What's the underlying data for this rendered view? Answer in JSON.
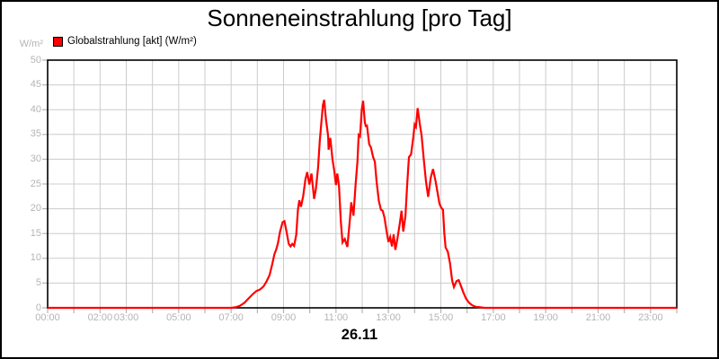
{
  "chart_data": {
    "type": "line",
    "title": "Sonneneinstrahlung [pro Tag]",
    "y_unit": "W/m²",
    "xlabel": "26.11",
    "ylim": [
      0,
      50
    ],
    "y_tick_step": 5,
    "xlim_minutes": [
      0,
      1440
    ],
    "grid": true,
    "legend_position": "top-left",
    "x_tick_labels": [
      {
        "hour": 0,
        "label": "00:00"
      },
      {
        "hour": 2,
        "label": "02:00"
      },
      {
        "hour": 3,
        "label": "03:00"
      },
      {
        "hour": 5,
        "label": "05:00"
      },
      {
        "hour": 7,
        "label": "07:00"
      },
      {
        "hour": 9,
        "label": "09:00"
      },
      {
        "hour": 11,
        "label": "11:00"
      },
      {
        "hour": 13,
        "label": "13:00"
      },
      {
        "hour": 15,
        "label": "15:00"
      },
      {
        "hour": 17,
        "label": "17:00"
      },
      {
        "hour": 19,
        "label": "19:00"
      },
      {
        "hour": 21,
        "label": "21:00"
      },
      {
        "hour": 23,
        "label": "23:00"
      }
    ],
    "legend": [
      {
        "label": "Globalstrahlung [akt] (W/m²)",
        "color": "#ff0000"
      }
    ],
    "colors": {
      "line": "#ff0000",
      "grid": "#cccccc",
      "axis_text": "#b4b4b4",
      "plot_border": "#000000",
      "background": "#ffffff",
      "text": "#000000"
    },
    "series": [
      {
        "name": "Globalstrahlung [akt]",
        "unit": "W/m²",
        "points": [
          [
            "00:00",
            0
          ],
          [
            "07:00",
            0
          ],
          [
            "07:10",
            0.1
          ],
          [
            "07:20",
            0.4
          ],
          [
            "07:30",
            1.0
          ],
          [
            "07:40",
            1.9
          ],
          [
            "07:50",
            2.8
          ],
          [
            "07:58",
            3.4
          ],
          [
            "08:06",
            3.7
          ],
          [
            "08:14",
            4.3
          ],
          [
            "08:21",
            5.3
          ],
          [
            "08:28",
            6.6
          ],
          [
            "08:34",
            8.8
          ],
          [
            "08:39",
            10.8
          ],
          [
            "08:43",
            11.7
          ],
          [
            "08:47",
            13.0
          ],
          [
            "08:52",
            15.4
          ],
          [
            "08:58",
            17.3
          ],
          [
            "09:02",
            17.5
          ],
          [
            "09:07",
            15.3
          ],
          [
            "09:12",
            12.9
          ],
          [
            "09:16",
            12.4
          ],
          [
            "09:20",
            12.9
          ],
          [
            "09:24",
            12.5
          ],
          [
            "09:29",
            14.7
          ],
          [
            "09:33",
            19.8
          ],
          [
            "09:36",
            21.7
          ],
          [
            "09:40",
            20.4
          ],
          [
            "09:45",
            22.6
          ],
          [
            "09:50",
            25.9
          ],
          [
            "09:54",
            27.4
          ],
          [
            "09:59",
            24.9
          ],
          [
            "10:04",
            27.1
          ],
          [
            "10:10",
            22.0
          ],
          [
            "10:14",
            24.0
          ],
          [
            "10:19",
            28.3
          ],
          [
            "10:23",
            33.7
          ],
          [
            "10:27",
            37.9
          ],
          [
            "10:30",
            40.9
          ],
          [
            "10:33",
            42.0
          ],
          [
            "10:37",
            38.0
          ],
          [
            "10:40",
            36.1
          ],
          [
            "10:42",
            34.6
          ],
          [
            "10:43",
            31.9
          ],
          [
            "10:47",
            34.3
          ],
          [
            "10:52",
            30.0
          ],
          [
            "10:56",
            27.7
          ],
          [
            "11:00",
            24.8
          ],
          [
            "11:03",
            27.1
          ],
          [
            "11:07",
            24.6
          ],
          [
            "11:11",
            17.5
          ],
          [
            "11:15",
            13.2
          ],
          [
            "11:20",
            13.9
          ],
          [
            "11:26",
            12.3
          ],
          [
            "11:32",
            18.0
          ],
          [
            "11:35",
            21.3
          ],
          [
            "11:40",
            18.6
          ],
          [
            "11:45",
            25.0
          ],
          [
            "11:49",
            29.5
          ],
          [
            "11:52",
            34.9
          ],
          [
            "11:55",
            34.6
          ],
          [
            "11:59",
            40.0
          ],
          [
            "12:02",
            41.8
          ],
          [
            "12:06",
            37.5
          ],
          [
            "12:08",
            36.7
          ],
          [
            "12:11",
            36.8
          ],
          [
            "12:16",
            33.0
          ],
          [
            "12:20",
            32.4
          ],
          [
            "12:25",
            30.4
          ],
          [
            "12:29",
            29.5
          ],
          [
            "12:33",
            25.5
          ],
          [
            "12:38",
            21.6
          ],
          [
            "12:43",
            19.8
          ],
          [
            "12:47",
            19.6
          ],
          [
            "12:51",
            18.2
          ],
          [
            "12:56",
            15.4
          ],
          [
            "13:00",
            13.3
          ],
          [
            "13:04",
            14.3
          ],
          [
            "13:08",
            12.4
          ],
          [
            "13:12",
            14.8
          ],
          [
            "13:16",
            11.7
          ],
          [
            "13:21",
            14.2
          ],
          [
            "13:26",
            17.0
          ],
          [
            "13:30",
            19.6
          ],
          [
            "13:34",
            15.4
          ],
          [
            "13:39",
            18.5
          ],
          [
            "13:43",
            25.0
          ],
          [
            "13:47",
            30.4
          ],
          [
            "13:52",
            31.0
          ],
          [
            "13:57",
            34.5
          ],
          [
            "14:00",
            37.0
          ],
          [
            "14:03",
            36.5
          ],
          [
            "14:07",
            40.3
          ],
          [
            "14:12",
            37.0
          ],
          [
            "14:16",
            34.8
          ],
          [
            "14:21",
            30.0
          ],
          [
            "14:26",
            25.5
          ],
          [
            "14:31",
            22.4
          ],
          [
            "14:37",
            26.3
          ],
          [
            "14:42",
            28.0
          ],
          [
            "14:48",
            25.5
          ],
          [
            "14:53",
            23.0
          ],
          [
            "14:57",
            21.0
          ],
          [
            "15:01",
            20.2
          ],
          [
            "15:05",
            19.8
          ],
          [
            "15:08",
            15.0
          ],
          [
            "15:11",
            12.2
          ],
          [
            "15:16",
            11.3
          ],
          [
            "15:21",
            9.0
          ],
          [
            "15:26",
            5.5
          ],
          [
            "15:30",
            4.2
          ],
          [
            "15:36",
            5.4
          ],
          [
            "15:41",
            5.6
          ],
          [
            "15:46",
            4.4
          ],
          [
            "15:52",
            3.0
          ],
          [
            "15:58",
            1.8
          ],
          [
            "16:05",
            1.0
          ],
          [
            "16:12",
            0.5
          ],
          [
            "16:20",
            0.2
          ],
          [
            "16:30",
            0.1
          ],
          [
            "16:40",
            0
          ],
          [
            "24:00",
            0
          ]
        ]
      }
    ]
  }
}
